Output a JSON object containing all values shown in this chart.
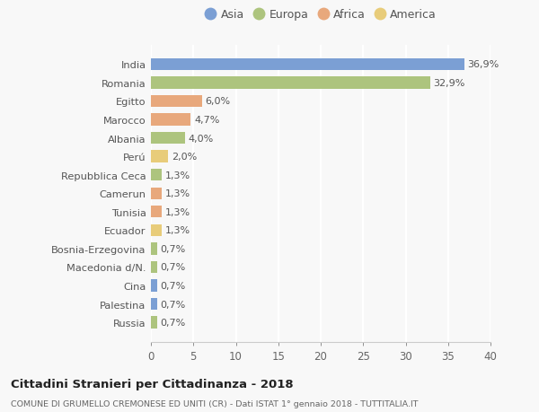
{
  "countries": [
    "India",
    "Romania",
    "Egitto",
    "Marocco",
    "Albania",
    "Perú",
    "Repubblica Ceca",
    "Camerun",
    "Tunisia",
    "Ecuador",
    "Bosnia-Erzegovina",
    "Macedonia d/N.",
    "Cina",
    "Palestina",
    "Russia"
  ],
  "values": [
    36.9,
    32.9,
    6.0,
    4.7,
    4.0,
    2.0,
    1.3,
    1.3,
    1.3,
    1.3,
    0.7,
    0.7,
    0.7,
    0.7,
    0.7
  ],
  "labels": [
    "36,9%",
    "32,9%",
    "6,0%",
    "4,7%",
    "4,0%",
    "2,0%",
    "1,3%",
    "1,3%",
    "1,3%",
    "1,3%",
    "0,7%",
    "0,7%",
    "0,7%",
    "0,7%",
    "0,7%"
  ],
  "continents": [
    "Asia",
    "Europa",
    "Africa",
    "Africa",
    "Europa",
    "America",
    "Europa",
    "Africa",
    "Africa",
    "America",
    "Europa",
    "Europa",
    "Asia",
    "Asia",
    "Europa"
  ],
  "continent_colors": {
    "Asia": "#7b9fd4",
    "Europa": "#adc47e",
    "Africa": "#e8a87c",
    "America": "#e8cc7a"
  },
  "legend_entries": [
    "Asia",
    "Europa",
    "Africa",
    "America"
  ],
  "legend_colors": [
    "#7b9fd4",
    "#adc47e",
    "#e8a87c",
    "#e8cc7a"
  ],
  "xlim": [
    0,
    40
  ],
  "xticks": [
    0,
    5,
    10,
    15,
    20,
    25,
    30,
    35,
    40
  ],
  "title": "Cittadini Stranieri per Cittadinanza - 2018",
  "subtitle": "COMUNE DI GRUMELLO CREMONESE ED UNITI (CR) - Dati ISTAT 1° gennaio 2018 - TUTTITALIA.IT",
  "bg_color": "#f8f8f8",
  "grid_color": "#ffffff",
  "bar_height": 0.65,
  "label_fontsize": 8.0,
  "ytick_fontsize": 8.2,
  "xtick_fontsize": 8.5
}
